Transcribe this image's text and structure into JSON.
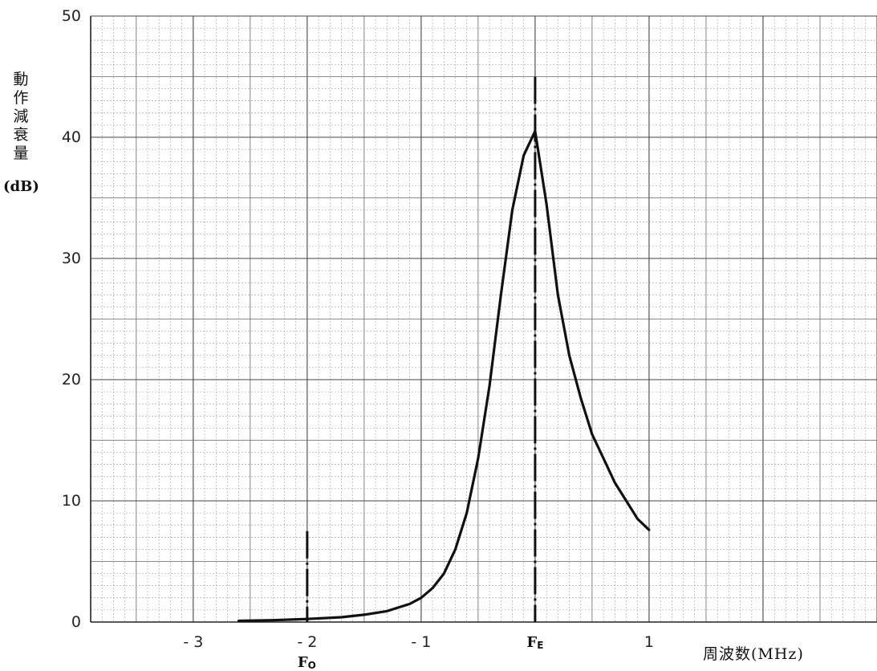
{
  "chart_data": {
    "type": "line",
    "ylabel_chars": [
      "動",
      "作",
      "減",
      "衰",
      "量"
    ],
    "ylabel_unit": "(dB)",
    "xlabel": "周波数(MHz)",
    "xlim": [
      -3.9,
      3.0
    ],
    "ylim": [
      0,
      50
    ],
    "grid": true,
    "y_ticks": [
      0,
      10,
      20,
      30,
      40,
      50
    ],
    "x_ticks": [
      {
        "value": -3,
        "label": "- 3"
      },
      {
        "value": -2,
        "label": "- 2"
      },
      {
        "value": -1,
        "label": "- 1"
      },
      {
        "value": 0,
        "label": "F",
        "sub": "E"
      },
      {
        "value": 1,
        "label": "1"
      }
    ],
    "markers": [
      {
        "name": "Fo",
        "label": "F",
        "sub": "O",
        "x": -2,
        "y_top": 7.5
      },
      {
        "name": "FE",
        "label": "F",
        "sub": "E",
        "x": 0,
        "y_top": 45
      }
    ],
    "series": [
      {
        "x": [
          -2.6,
          -2.3,
          -2.0,
          -1.7,
          -1.5,
          -1.3,
          -1.1,
          -1.0,
          -0.9,
          -0.8,
          -0.7,
          -0.6,
          -0.5,
          -0.4,
          -0.3,
          -0.2,
          -0.1,
          0.0,
          0.1,
          0.2,
          0.3,
          0.4,
          0.5,
          0.6,
          0.7,
          0.8,
          0.9,
          1.0
        ],
        "y": [
          0.1,
          0.15,
          0.25,
          0.4,
          0.6,
          0.9,
          1.5,
          2.0,
          2.8,
          4.0,
          6.0,
          9.0,
          13.5,
          19.5,
          27.0,
          34.0,
          38.5,
          40.5,
          34.5,
          27.0,
          22.0,
          18.5,
          15.5,
          13.5,
          11.5,
          10.0,
          8.5,
          7.6
        ]
      }
    ]
  }
}
